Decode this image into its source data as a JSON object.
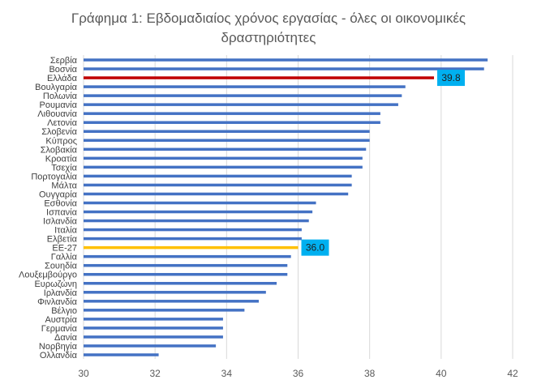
{
  "chart_data": {
    "type": "bar",
    "orientation": "horizontal",
    "title_line1": "Γράφημα 1: Εβδομαδιαίος χρόνος εργασίας - όλες οι οικονομικές",
    "title_line2": "δραστηριότητες",
    "xlabel": "",
    "ylabel": "",
    "xlim": [
      30,
      42
    ],
    "ticks": [
      "30",
      "32",
      "34",
      "36",
      "38",
      "40",
      "42"
    ],
    "grid": "vertical",
    "legend": "none",
    "categories": [
      "Σερβία",
      "Βοσνία",
      "Ελλάδα",
      "Βουλγαρία",
      "Πολωνία",
      "Ρουμανία",
      "Λιθουανία",
      "Λετονία",
      "Σλοβενία",
      "Κύπρος",
      "Σλοβακία",
      "Κροατία",
      "Τσεχία",
      "Πορτογαλία",
      "Μάλτα",
      "Ουγγαρία",
      "Εσθονία",
      "Ισπανία",
      "Ισλανδία",
      "Ιταλία",
      "Ελβετία",
      "ΕΕ-27",
      "Γαλλία",
      "Σουηδία",
      "Λουξεμβούργο",
      "Ευρωζώνη",
      "Ιρλανδία",
      "Φινλανδία",
      "Βέλγιο",
      "Αυστρία",
      "Γερμανία",
      "Δανία",
      "Νορβηγία",
      "Ολλανδία"
    ],
    "values": [
      41.3,
      41.2,
      39.8,
      39.0,
      38.9,
      38.8,
      38.3,
      38.3,
      38.0,
      38.0,
      37.9,
      37.8,
      37.8,
      37.5,
      37.5,
      37.4,
      36.5,
      36.4,
      36.3,
      36.1,
      36.1,
      36.0,
      35.8,
      35.7,
      35.7,
      35.4,
      35.1,
      34.9,
      34.5,
      33.9,
      33.9,
      33.9,
      33.7,
      32.1
    ],
    "data_labels": [
      {
        "category": "Ελλάδα",
        "text": "39.8"
      },
      {
        "category": "ΕΕ-27",
        "text": "36.0"
      }
    ],
    "colors": {
      "default": "#4472C4",
      "Ελλάδα": "#C00000",
      "ΕΕ-27": "#FFC000",
      "label_box": "#00B0F0",
      "grid": "#D9D9D9",
      "axis_text": "#595959"
    }
  }
}
